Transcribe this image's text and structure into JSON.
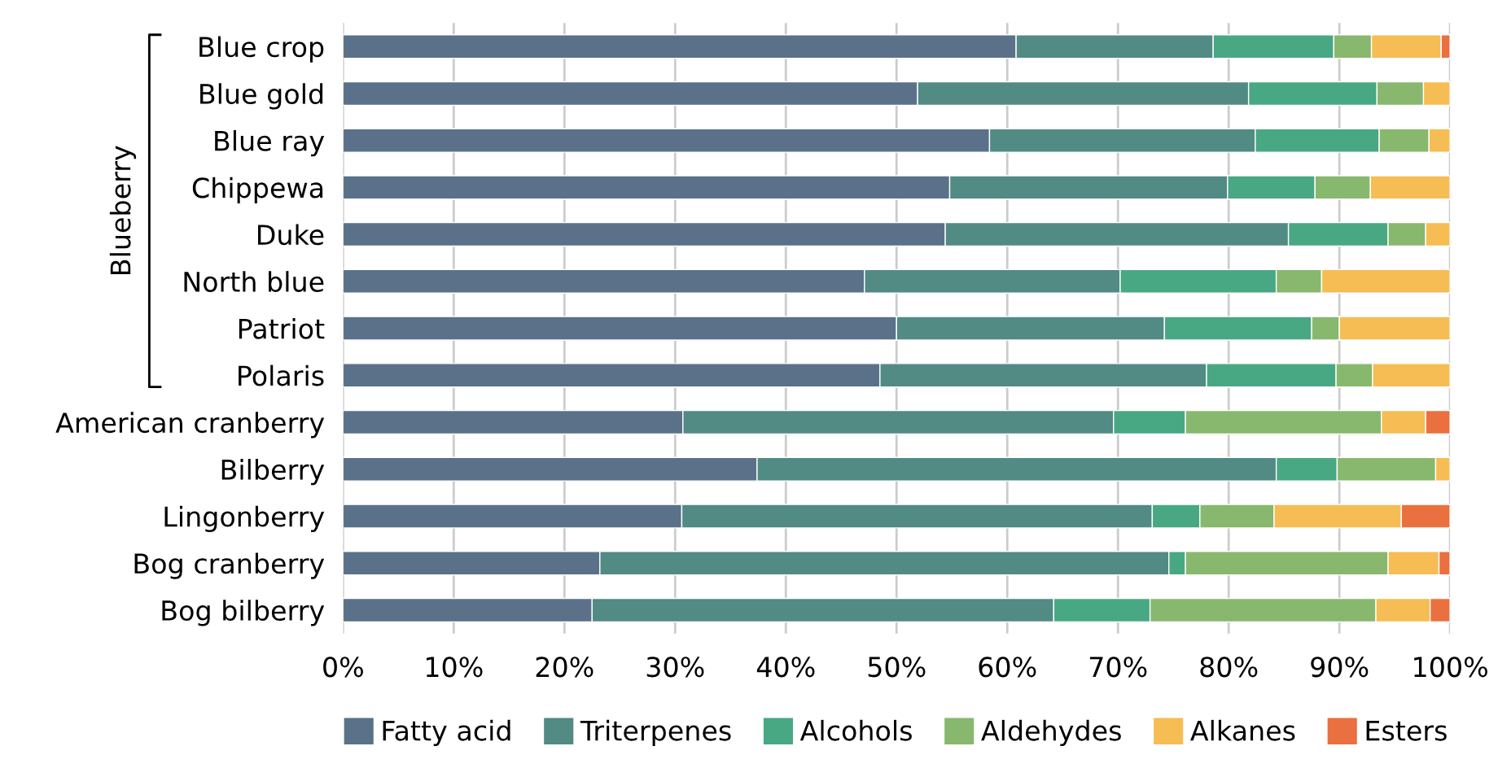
{
  "chart_data": {
    "type": "bar",
    "orientation": "horizontal",
    "stacked": true,
    "categories": [
      "Blue crop",
      "Blue gold",
      "Blue ray",
      "Chippewa",
      "Duke",
      "North blue",
      "Patriot",
      "Polaris",
      "American cranberry",
      "Bilberry",
      "Lingonberry",
      "Bog cranberry",
      "Bog bilberry"
    ],
    "series": [
      {
        "name": "Fatty acid",
        "color": "#5a7189",
        "values": [
          60.8,
          51.9,
          58.4,
          54.8,
          54.4,
          47.1,
          50.0,
          48.5,
          30.7,
          37.4,
          30.6,
          23.2,
          22.5
        ]
      },
      {
        "name": "Triterpenes",
        "color": "#528a84",
        "values": [
          17.8,
          29.9,
          24.0,
          25.1,
          31.0,
          23.1,
          24.2,
          29.5,
          38.9,
          46.9,
          42.5,
          51.4,
          41.7
        ]
      },
      {
        "name": "Alcohols",
        "color": "#49a884",
        "values": [
          10.9,
          11.6,
          11.2,
          7.9,
          9.0,
          14.1,
          13.3,
          11.7,
          6.5,
          5.5,
          4.3,
          1.5,
          8.7
        ]
      },
      {
        "name": "Aldehydes",
        "color": "#88b86e",
        "values": [
          3.4,
          4.2,
          4.5,
          5.0,
          3.4,
          4.1,
          2.5,
          3.3,
          17.7,
          8.9,
          6.7,
          18.3,
          20.4
        ]
      },
      {
        "name": "Alkanes",
        "color": "#f6bd54",
        "values": [
          6.3,
          2.4,
          1.9,
          7.2,
          2.2,
          11.6,
          10.0,
          7.0,
          4.0,
          1.3,
          11.5,
          4.6,
          4.9
        ]
      },
      {
        "name": "Esters",
        "color": "#ea7040",
        "values": [
          0.8,
          null,
          null,
          null,
          null,
          null,
          null,
          null,
          2.2,
          null,
          4.4,
          1.0,
          1.8
        ]
      }
    ],
    "xlim": [
      0,
      100
    ],
    "xticks": [
      {
        "value": 0,
        "label": "0%"
      },
      {
        "value": 10,
        "label": "10%"
      },
      {
        "value": 20,
        "label": "20%"
      },
      {
        "value": 30,
        "label": "30%"
      },
      {
        "value": 40,
        "label": "40%"
      },
      {
        "value": 50,
        "label": "50%"
      },
      {
        "value": 60,
        "label": "60%"
      },
      {
        "value": 70,
        "label": "70%"
      },
      {
        "value": 80,
        "label": "80%"
      },
      {
        "value": 90,
        "label": "90%"
      },
      {
        "value": 100,
        "label": "100%"
      }
    ],
    "grid": "x",
    "legend": "bottom",
    "annotations": [
      "Blueberry"
    ]
  }
}
